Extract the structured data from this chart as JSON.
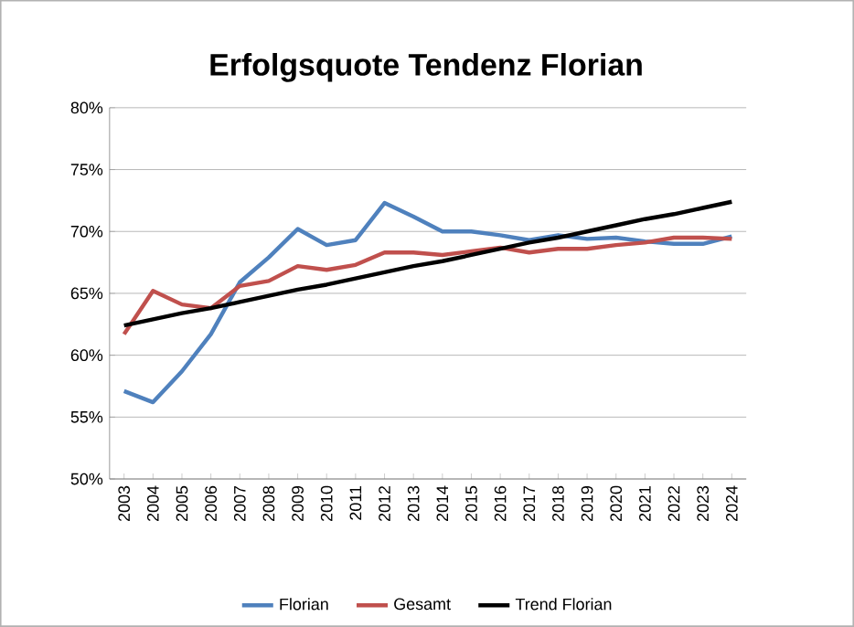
{
  "chart_data": {
    "type": "line",
    "title": "Erfolgsquote Tendenz Florian",
    "categories": [
      "2003",
      "2004",
      "2005",
      "2006",
      "2007",
      "2008",
      "2009",
      "2010",
      "2011",
      "2012",
      "2013",
      "2014",
      "2015",
      "2016",
      "2017",
      "2018",
      "2019",
      "2020",
      "2021",
      "2022",
      "2023",
      "2024"
    ],
    "series": [
      {
        "name": "Florian",
        "color": "#4f81bd",
        "values": [
          57.1,
          56.2,
          58.7,
          61.7,
          65.9,
          67.9,
          70.2,
          68.9,
          69.3,
          72.3,
          71.2,
          70.0,
          70.0,
          69.7,
          69.3,
          69.7,
          69.4,
          69.5,
          69.2,
          69.0,
          69.0,
          69.6
        ]
      },
      {
        "name": "Gesamt",
        "color": "#c0504d",
        "values": [
          61.7,
          65.2,
          64.1,
          63.8,
          65.6,
          66.0,
          67.2,
          66.9,
          67.3,
          68.3,
          68.3,
          68.1,
          68.4,
          68.7,
          68.3,
          68.6,
          68.6,
          68.9,
          69.1,
          69.5,
          69.5,
          69.4
        ]
      },
      {
        "name": "Trend Florian",
        "color": "#000000",
        "values": [
          62.4,
          62.9,
          63.4,
          63.8,
          64.3,
          64.8,
          65.3,
          65.7,
          66.2,
          66.7,
          67.2,
          67.6,
          68.1,
          68.6,
          69.1,
          69.5,
          70.0,
          70.5,
          71.0,
          71.4,
          71.9,
          72.4
        ]
      }
    ],
    "ylim": [
      50,
      80
    ],
    "yticks": [
      {
        "value": 50,
        "label": "50%"
      },
      {
        "value": 55,
        "label": "55%"
      },
      {
        "value": 60,
        "label": "60%"
      },
      {
        "value": 65,
        "label": "65%"
      },
      {
        "value": 70,
        "label": "70%"
      },
      {
        "value": 75,
        "label": "75%"
      },
      {
        "value": 80,
        "label": "80%"
      }
    ],
    "grid": "y",
    "legend": "bottom",
    "marker": "none",
    "line_style": "solid"
  }
}
